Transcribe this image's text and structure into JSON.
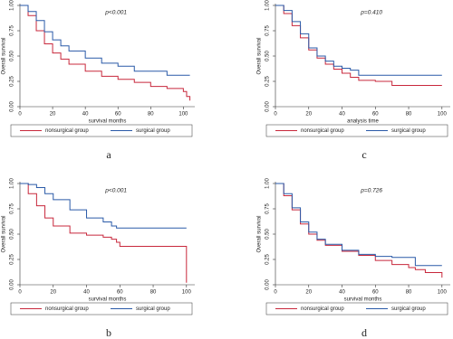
{
  "chart_data": [
    {
      "type": "line",
      "step": true,
      "panel_label": "a",
      "annotation": "p<0.001",
      "xlabel": "survival months",
      "ylabel": "Overall survival",
      "legend": "bottom",
      "xlim": [
        0,
        107
      ],
      "xticks": [
        0,
        20,
        40,
        60,
        80,
        100
      ],
      "ylim": [
        0,
        1
      ],
      "yticks": [
        {
          "value": 0,
          "label": "0.00"
        },
        {
          "value": 0.25,
          "label": "0.25"
        },
        {
          "value": 0.5,
          "label": "0.50"
        },
        {
          "value": 0.75,
          "label": "0.75"
        },
        {
          "value": 1,
          "label": "1.00"
        }
      ],
      "x": [
        0,
        5,
        10,
        15,
        20,
        25,
        30,
        40,
        50,
        60,
        70,
        80,
        90,
        100,
        102,
        104
      ],
      "series": [
        {
          "name": "nonsurgical group",
          "color": "#c8283c",
          "values": [
            1,
            0.9,
            0.75,
            0.62,
            0.53,
            0.47,
            0.42,
            0.35,
            0.3,
            0.27,
            0.24,
            0.2,
            0.18,
            0.15,
            0.1,
            0.06
          ]
        },
        {
          "name": "surgical group",
          "color": "#2a5aa8",
          "values": [
            1,
            0.94,
            0.85,
            0.74,
            0.66,
            0.6,
            0.55,
            0.48,
            0.43,
            0.4,
            0.35,
            0.35,
            0.31,
            0.31,
            0.31,
            0.31
          ]
        }
      ]
    },
    {
      "type": "line",
      "step": true,
      "panel_label": "c",
      "annotation": "p=0.410",
      "xlabel": "analysis time",
      "ylabel": "Overall survival",
      "legend": "bottom",
      "xlim": [
        0,
        105
      ],
      "xticks": [
        0,
        20,
        40,
        60,
        80,
        100
      ],
      "ylim": [
        0,
        1
      ],
      "yticks": [
        {
          "value": 0,
          "label": "0.00"
        },
        {
          "value": 0.25,
          "label": "0.25"
        },
        {
          "value": 0.5,
          "label": "0.50"
        },
        {
          "value": 0.75,
          "label": "0.75"
        },
        {
          "value": 1,
          "label": "1.00"
        }
      ],
      "x": [
        0,
        5,
        10,
        15,
        20,
        25,
        30,
        35,
        40,
        45,
        50,
        60,
        70,
        80,
        100
      ],
      "series": [
        {
          "name": "nonsurgical group",
          "color": "#c8283c",
          "values": [
            1,
            0.92,
            0.8,
            0.68,
            0.56,
            0.48,
            0.42,
            0.37,
            0.33,
            0.29,
            0.26,
            0.25,
            0.21,
            0.21,
            0.21
          ]
        },
        {
          "name": "surgical group",
          "color": "#2a5aa8",
          "values": [
            1,
            0.95,
            0.84,
            0.72,
            0.58,
            0.5,
            0.45,
            0.4,
            0.38,
            0.36,
            0.31,
            0.31,
            0.31,
            0.31,
            0.31
          ]
        }
      ]
    },
    {
      "type": "line",
      "step": true,
      "panel_label": "b",
      "annotation": "p<0.001",
      "xlabel": "survival months",
      "ylabel": "Overall survival",
      "legend": "bottom",
      "xlim": [
        0,
        105
      ],
      "xticks": [
        0,
        20,
        40,
        60,
        80,
        100
      ],
      "ylim": [
        0,
        1
      ],
      "yticks": [
        {
          "value": 0,
          "label": "0.00"
        },
        {
          "value": 0.25,
          "label": "0.25"
        },
        {
          "value": 0.5,
          "label": "0.50"
        },
        {
          "value": 0.75,
          "label": "0.75"
        },
        {
          "value": 1,
          "label": "1.00"
        }
      ],
      "x": [
        0,
        5,
        10,
        15,
        20,
        30,
        40,
        50,
        55,
        58,
        60,
        70,
        80,
        90,
        99,
        100
      ],
      "series": [
        {
          "name": "nonsurgical group",
          "color": "#c8283c",
          "values": [
            1,
            0.9,
            0.78,
            0.66,
            0.58,
            0.51,
            0.49,
            0.47,
            0.45,
            0.42,
            0.38,
            0.38,
            0.38,
            0.38,
            0.38,
            0.02
          ]
        },
        {
          "name": "surgical group",
          "color": "#2a5aa8",
          "values": [
            1,
            0.99,
            0.96,
            0.9,
            0.84,
            0.74,
            0.66,
            0.62,
            0.58,
            0.56,
            0.56,
            0.56,
            0.56,
            0.56,
            0.56,
            0.56
          ]
        }
      ]
    },
    {
      "type": "line",
      "step": true,
      "panel_label": "d",
      "annotation": "p=0.726",
      "xlabel": "survival months",
      "ylabel": "Overall survival",
      "legend": "bottom",
      "xlim": [
        0,
        105
      ],
      "xticks": [
        0,
        20,
        40,
        60,
        80,
        100
      ],
      "ylim": [
        0,
        1
      ],
      "yticks": [
        {
          "value": 0,
          "label": "0.00"
        },
        {
          "value": 0.25,
          "label": "0.25"
        },
        {
          "value": 0.5,
          "label": "0.50"
        },
        {
          "value": 0.75,
          "label": "0.75"
        },
        {
          "value": 1,
          "label": "1.00"
        }
      ],
      "x": [
        0,
        5,
        10,
        15,
        20,
        25,
        30,
        40,
        50,
        60,
        70,
        80,
        84,
        90,
        100
      ],
      "series": [
        {
          "name": "nonsurgical group",
          "color": "#c8283c",
          "values": [
            1,
            0.88,
            0.74,
            0.6,
            0.5,
            0.44,
            0.39,
            0.33,
            0.29,
            0.24,
            0.2,
            0.17,
            0.15,
            0.12,
            0.07
          ]
        },
        {
          "name": "surgical group",
          "color": "#2a5aa8",
          "values": [
            1,
            0.9,
            0.76,
            0.62,
            0.52,
            0.45,
            0.4,
            0.34,
            0.3,
            0.28,
            0.27,
            0.27,
            0.19,
            0.19,
            0.19
          ]
        }
      ]
    }
  ]
}
